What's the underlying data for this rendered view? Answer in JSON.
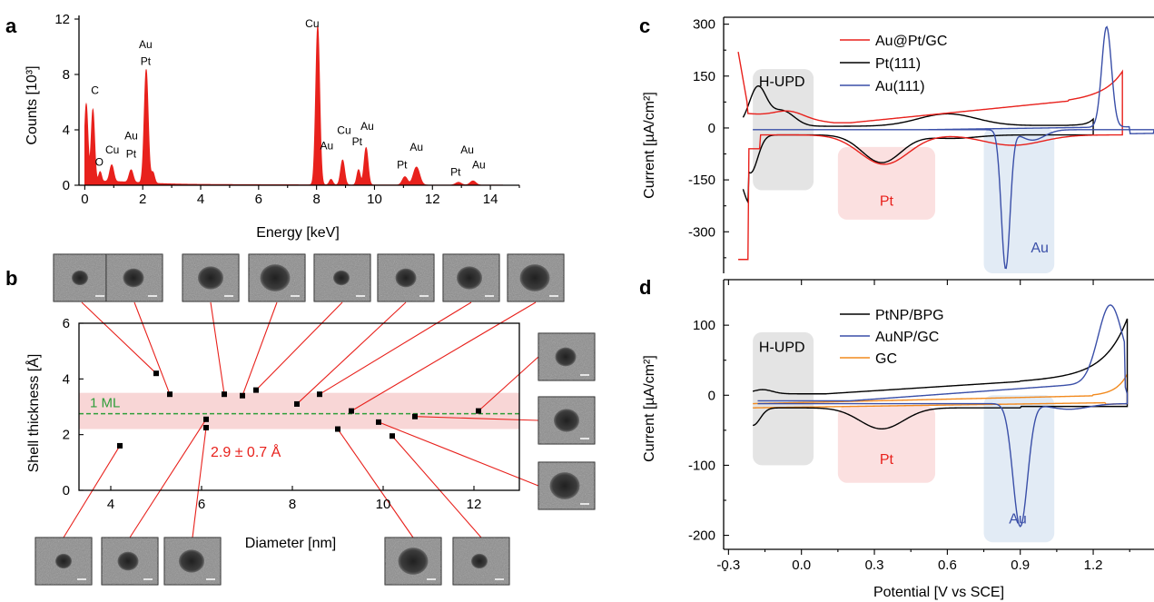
{
  "chart_data": [
    {
      "panel": "a",
      "type": "area",
      "xlabel": "Energy [keV]",
      "ylabel": "Counts [10³]",
      "xlim": [
        -0.2,
        15
      ],
      "ylim": [
        0,
        12
      ],
      "xticks": [
        "0",
        "2",
        "4",
        "6",
        "8",
        "10",
        "12",
        "14"
      ],
      "yticks": [
        "0",
        "4",
        "8",
        "12"
      ],
      "color": "#e8211c",
      "peaks": [
        {
          "x": 0.05,
          "y": 5.6,
          "w": 0.06
        },
        {
          "x": 0.28,
          "y": 5.2,
          "w": 0.06
        },
        {
          "x": 0.53,
          "y": 0.7,
          "w": 0.05
        },
        {
          "x": 0.93,
          "y": 1.2,
          "w": 0.07
        },
        {
          "x": 1.6,
          "y": 0.9,
          "w": 0.07
        },
        {
          "x": 2.12,
          "y": 8.2,
          "w": 0.07
        },
        {
          "x": 2.35,
          "y": 0.8,
          "w": 0.06
        },
        {
          "x": 8.04,
          "y": 11.5,
          "w": 0.07
        },
        {
          "x": 8.5,
          "y": 0.4,
          "w": 0.06
        },
        {
          "x": 8.9,
          "y": 1.8,
          "w": 0.07
        },
        {
          "x": 9.45,
          "y": 1.1,
          "w": 0.06
        },
        {
          "x": 9.71,
          "y": 2.7,
          "w": 0.07
        },
        {
          "x": 11.05,
          "y": 0.6,
          "w": 0.09
        },
        {
          "x": 11.45,
          "y": 1.3,
          "w": 0.11
        },
        {
          "x": 12.9,
          "y": 0.2,
          "w": 0.1
        },
        {
          "x": 13.4,
          "y": 0.3,
          "w": 0.1
        }
      ],
      "annotations": [
        {
          "text": "C",
          "x": 0.35,
          "y": 6.6
        },
        {
          "text": "O",
          "x": 0.5,
          "y": 1.4
        },
        {
          "text": "Cu",
          "x": 0.95,
          "y": 2.3
        },
        {
          "text": "Au",
          "x": 1.6,
          "y": 3.3
        },
        {
          "text": "Pt",
          "x": 1.6,
          "y": 2.0
        },
        {
          "text": "Au",
          "x": 2.1,
          "y": 9.9
        },
        {
          "text": "Pt",
          "x": 2.1,
          "y": 8.7
        },
        {
          "text": "Cu",
          "x": 7.85,
          "y": 11.4
        },
        {
          "text": "Au",
          "x": 8.35,
          "y": 2.6
        },
        {
          "text": "Cu",
          "x": 8.95,
          "y": 3.7
        },
        {
          "text": "Pt",
          "x": 9.4,
          "y": 2.9
        },
        {
          "text": "Au",
          "x": 9.75,
          "y": 4.0
        },
        {
          "text": "Pt",
          "x": 10.95,
          "y": 1.2
        },
        {
          "text": "Au",
          "x": 11.45,
          "y": 2.5
        },
        {
          "text": "Pt",
          "x": 12.8,
          "y": 0.7
        },
        {
          "text": "Au",
          "x": 13.2,
          "y": 2.3
        },
        {
          "text": "Au",
          "x": 13.6,
          "y": 1.2
        }
      ]
    },
    {
      "panel": "b",
      "type": "scatter",
      "xlabel": "Diameter [nm]",
      "ylabel": "Shell thickness [Å]",
      "xlim": [
        3.3,
        13
      ],
      "ylim": [
        0,
        6
      ],
      "xticks": [
        "4",
        "6",
        "8",
        "10",
        "12"
      ],
      "yticks": [
        "0",
        "2",
        "4",
        "6"
      ],
      "points": [
        {
          "x": 4.2,
          "y": 1.6
        },
        {
          "x": 5.0,
          "y": 4.2
        },
        {
          "x": 5.3,
          "y": 3.45
        },
        {
          "x": 6.1,
          "y": 2.55
        },
        {
          "x": 6.1,
          "y": 2.25
        },
        {
          "x": 6.5,
          "y": 3.45
        },
        {
          "x": 6.9,
          "y": 3.4
        },
        {
          "x": 7.2,
          "y": 3.6
        },
        {
          "x": 8.1,
          "y": 3.1
        },
        {
          "x": 8.6,
          "y": 3.45
        },
        {
          "x": 9.0,
          "y": 2.2
        },
        {
          "x": 9.3,
          "y": 2.85
        },
        {
          "x": 9.9,
          "y": 2.45
        },
        {
          "x": 10.2,
          "y": 1.95
        },
        {
          "x": 10.7,
          "y": 2.65
        },
        {
          "x": 12.1,
          "y": 2.85
        }
      ],
      "band": [
        2.2,
        3.5
      ],
      "band_color": "#f8d6d6",
      "ml_line": 2.75,
      "ml_label": "1 ML",
      "ml_color": "#2f9e3a",
      "mean_label": "2.9 ± 0.7 Å",
      "mean_color": "#e8211c"
    },
    {
      "panel": "c",
      "type": "line",
      "ylabel": "Current [µA/cm²]",
      "xlim": [
        -0.32,
        1.45
      ],
      "ylim": [
        -420,
        320
      ],
      "yticks": [
        "300",
        "150",
        "0",
        "-150",
        "-300"
      ],
      "series": [
        {
          "name": "Au@Pt/GC",
          "color": "#e8211c"
        },
        {
          "name": "Pt(111)",
          "color": "#000000"
        },
        {
          "name": "Au(111)",
          "color": "#3a4fa8"
        }
      ],
      "regions": [
        {
          "label": "H-UPD",
          "x": [
            -0.2,
            0.05
          ],
          "y": [
            -180,
            170
          ],
          "color": "#e4e4e4",
          "text_color": "#000000"
        },
        {
          "label": "Pt",
          "x": [
            0.15,
            0.55
          ],
          "y": [
            -265,
            -55
          ],
          "color": "#fbe0e0",
          "text_color": "#e8211c"
        },
        {
          "label": "Au",
          "x": [
            0.75,
            1.04
          ],
          "y": [
            -420,
            0
          ],
          "color": "#e2ebf5",
          "text_color": "#3a4fa8"
        }
      ]
    },
    {
      "panel": "d",
      "type": "line",
      "xlabel": "Potential [V vs SCE]",
      "ylabel": "Current [µA/cm²]",
      "xlim": [
        -0.32,
        1.45
      ],
      "ylim": [
        -220,
        165
      ],
      "xticks": [
        "-0.3",
        "0.0",
        "0.3",
        "0.6",
        "0.9",
        "1.2"
      ],
      "yticks": [
        "100",
        "0",
        "-100",
        "-200"
      ],
      "series": [
        {
          "name": "PtNP/BPG",
          "color": "#000000"
        },
        {
          "name": "AuNP/GC",
          "color": "#3a4fa8"
        },
        {
          "name": "GC",
          "color": "#f28a1e"
        }
      ],
      "regions": [
        {
          "label": "H-UPD",
          "x": [
            -0.2,
            0.05
          ],
          "y": [
            -100,
            90
          ],
          "color": "#e4e4e4",
          "text_color": "#000000"
        },
        {
          "label": "Pt",
          "x": [
            0.15,
            0.55
          ],
          "y": [
            -125,
            -15
          ],
          "color": "#fbe0e0",
          "text_color": "#e8211c"
        },
        {
          "label": "Au",
          "x": [
            0.75,
            1.04
          ],
          "y": [
            -210,
            0
          ],
          "color": "#e2ebf5",
          "text_color": "#3a4fa8"
        }
      ]
    }
  ]
}
